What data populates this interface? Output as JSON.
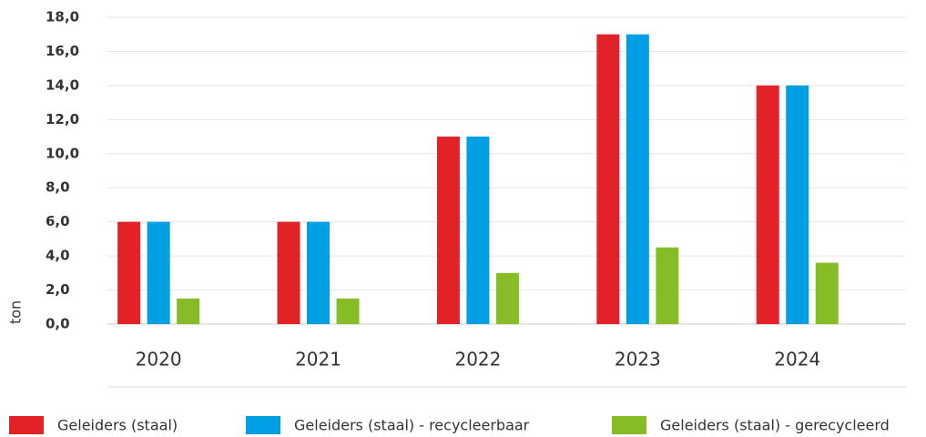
{
  "chart_data": {
    "type": "bar",
    "y_label": "ton",
    "categories": [
      "2020",
      "2021",
      "2022",
      "2023",
      "2024"
    ],
    "series": [
      {
        "name": "Geleiders (staal)",
        "color": "#e32227",
        "values": [
          6,
          6,
          11,
          17,
          14
        ]
      },
      {
        "name": "Geleiders (staal) - recycleerbaar",
        "color": "#009fe3",
        "values": [
          6,
          6,
          11,
          17,
          14
        ]
      },
      {
        "name": "Geleiders (staal) - gerecycleerd",
        "color": "#86bc25",
        "values": [
          1.5,
          1.5,
          3.0,
          4.5,
          3.6
        ]
      }
    ],
    "ylim": [
      0,
      18
    ],
    "yticks": [
      {
        "value": 0,
        "label": "0,0"
      },
      {
        "value": 2,
        "label": "2,0"
      },
      {
        "value": 4,
        "label": "4,0"
      },
      {
        "value": 6,
        "label": "6,0"
      },
      {
        "value": 8,
        "label": "8,0"
      },
      {
        "value": 10,
        "label": "10,0"
      },
      {
        "value": 12,
        "label": "12,0"
      },
      {
        "value": 14,
        "label": "14,0"
      },
      {
        "value": 16,
        "label": "16,0"
      },
      {
        "value": 18,
        "label": "18,0"
      }
    ],
    "grid": true,
    "legend": "bottom"
  }
}
